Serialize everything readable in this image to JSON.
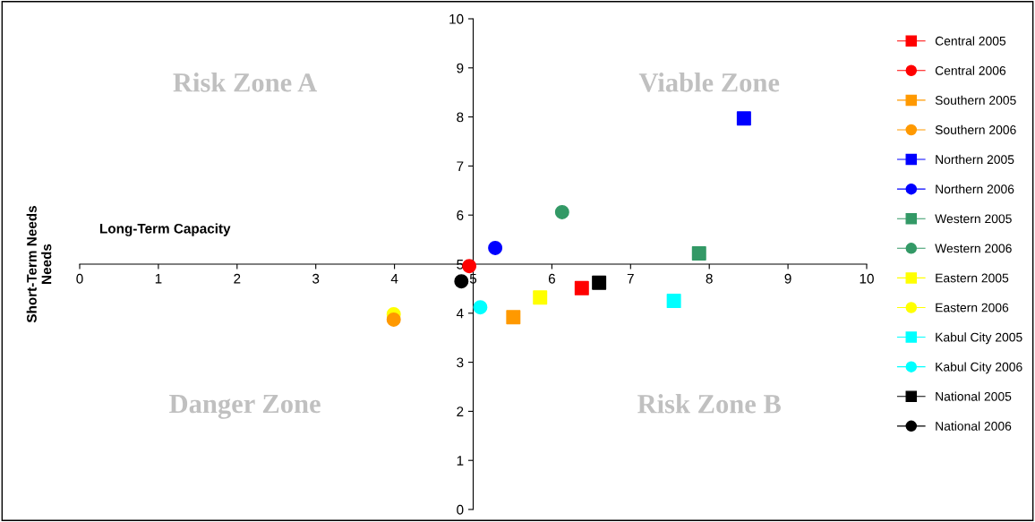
{
  "chart_data": {
    "type": "scatter",
    "xlabel": "Long-Term Capacity",
    "ylabel": "Short-Term Needs\nNeeds",
    "xlim": [
      0,
      10
    ],
    "ylim": [
      0,
      10
    ],
    "xticks": [
      0,
      1,
      2,
      3,
      4,
      5,
      6,
      7,
      8,
      9,
      10
    ],
    "yticks": [
      0,
      1,
      2,
      3,
      4,
      5,
      6,
      7,
      8,
      9,
      10
    ],
    "grid": false,
    "legend": "right",
    "annotations": [
      "Risk Zone A",
      "Viable Zone",
      "Danger Zone",
      "Risk Zone B"
    ],
    "series": [
      {
        "name": "Central 2005",
        "color": "#ff0000",
        "marker": "square",
        "x": [
          6.38
        ],
        "values": [
          4.51
        ]
      },
      {
        "name": "Central 2006",
        "color": "#ff0000",
        "marker": "circle",
        "x": [
          4.95
        ],
        "values": [
          4.96
        ]
      },
      {
        "name": "Southern 2005",
        "color": "#ff9900",
        "marker": "square",
        "x": [
          5.51
        ],
        "values": [
          3.92
        ]
      },
      {
        "name": "Southern 2006",
        "color": "#ff9900",
        "marker": "circle",
        "x": [
          3.99
        ],
        "values": [
          3.87
        ]
      },
      {
        "name": "Northern 2005",
        "color": "#0000ff",
        "marker": "square",
        "x": [
          8.44
        ],
        "values": [
          7.97
        ]
      },
      {
        "name": "Northern 2006",
        "color": "#0000ff",
        "marker": "circle",
        "x": [
          5.28
        ],
        "values": [
          5.33
        ]
      },
      {
        "name": "Western 2005",
        "color": "#339966",
        "marker": "square",
        "x": [
          7.87
        ],
        "values": [
          5.22
        ]
      },
      {
        "name": "Western 2006",
        "color": "#339966",
        "marker": "circle",
        "x": [
          6.13
        ],
        "values": [
          6.06
        ]
      },
      {
        "name": "Eastern 2005",
        "color": "#ffff00",
        "marker": "square",
        "x": [
          5.85
        ],
        "values": [
          4.32
        ]
      },
      {
        "name": "Eastern 2006",
        "color": "#ffff00",
        "marker": "circle",
        "x": [
          3.99
        ],
        "values": [
          3.98
        ]
      },
      {
        "name": "Kabul City 2005",
        "color": "#00ffff",
        "marker": "square",
        "x": [
          7.55
        ],
        "values": [
          4.25
        ]
      },
      {
        "name": "Kabul City 2006",
        "color": "#00ffff",
        "marker": "circle",
        "x": [
          5.09
        ],
        "values": [
          4.12
        ]
      },
      {
        "name": "National 2005",
        "color": "#000000",
        "marker": "square",
        "x": [
          6.6
        ],
        "values": [
          4.62
        ]
      },
      {
        "name": "National 2006",
        "color": "#000000",
        "marker": "circle",
        "x": [
          4.85
        ],
        "values": [
          4.65
        ]
      }
    ]
  }
}
